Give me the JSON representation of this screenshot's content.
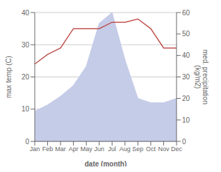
{
  "chart_data": {
    "type": "line",
    "xlabel": "date (month)",
    "ylabel": "max temp (C)",
    "y2label": "med. precipitation\n(kg/m2)",
    "categories": [
      "Jan",
      "Feb",
      "Mar",
      "Apr",
      "May",
      "Jun",
      "Jul",
      "Aug",
      "Sep",
      "Oct",
      "Nov",
      "Dec"
    ],
    "series": [
      {
        "type": "area",
        "color": "#c5cce8",
        "axis": "y2",
        "values": [
          14,
          17,
          21,
          26,
          35,
          55,
          60,
          38,
          20,
          18,
          18,
          20
        ]
      },
      {
        "color": "#c0504d",
        "values": [
          24,
          27,
          29,
          35,
          35,
          35,
          37,
          37,
          38,
          35,
          29,
          29
        ]
      }
    ],
    "ylim": [
      0,
      40
    ],
    "yticks": [
      0,
      10,
      20,
      30,
      40
    ],
    "y2lim": [
      0,
      60
    ],
    "y2ticks": [
      0,
      10,
      20,
      30,
      40,
      50,
      60
    ],
    "grid": true
  }
}
